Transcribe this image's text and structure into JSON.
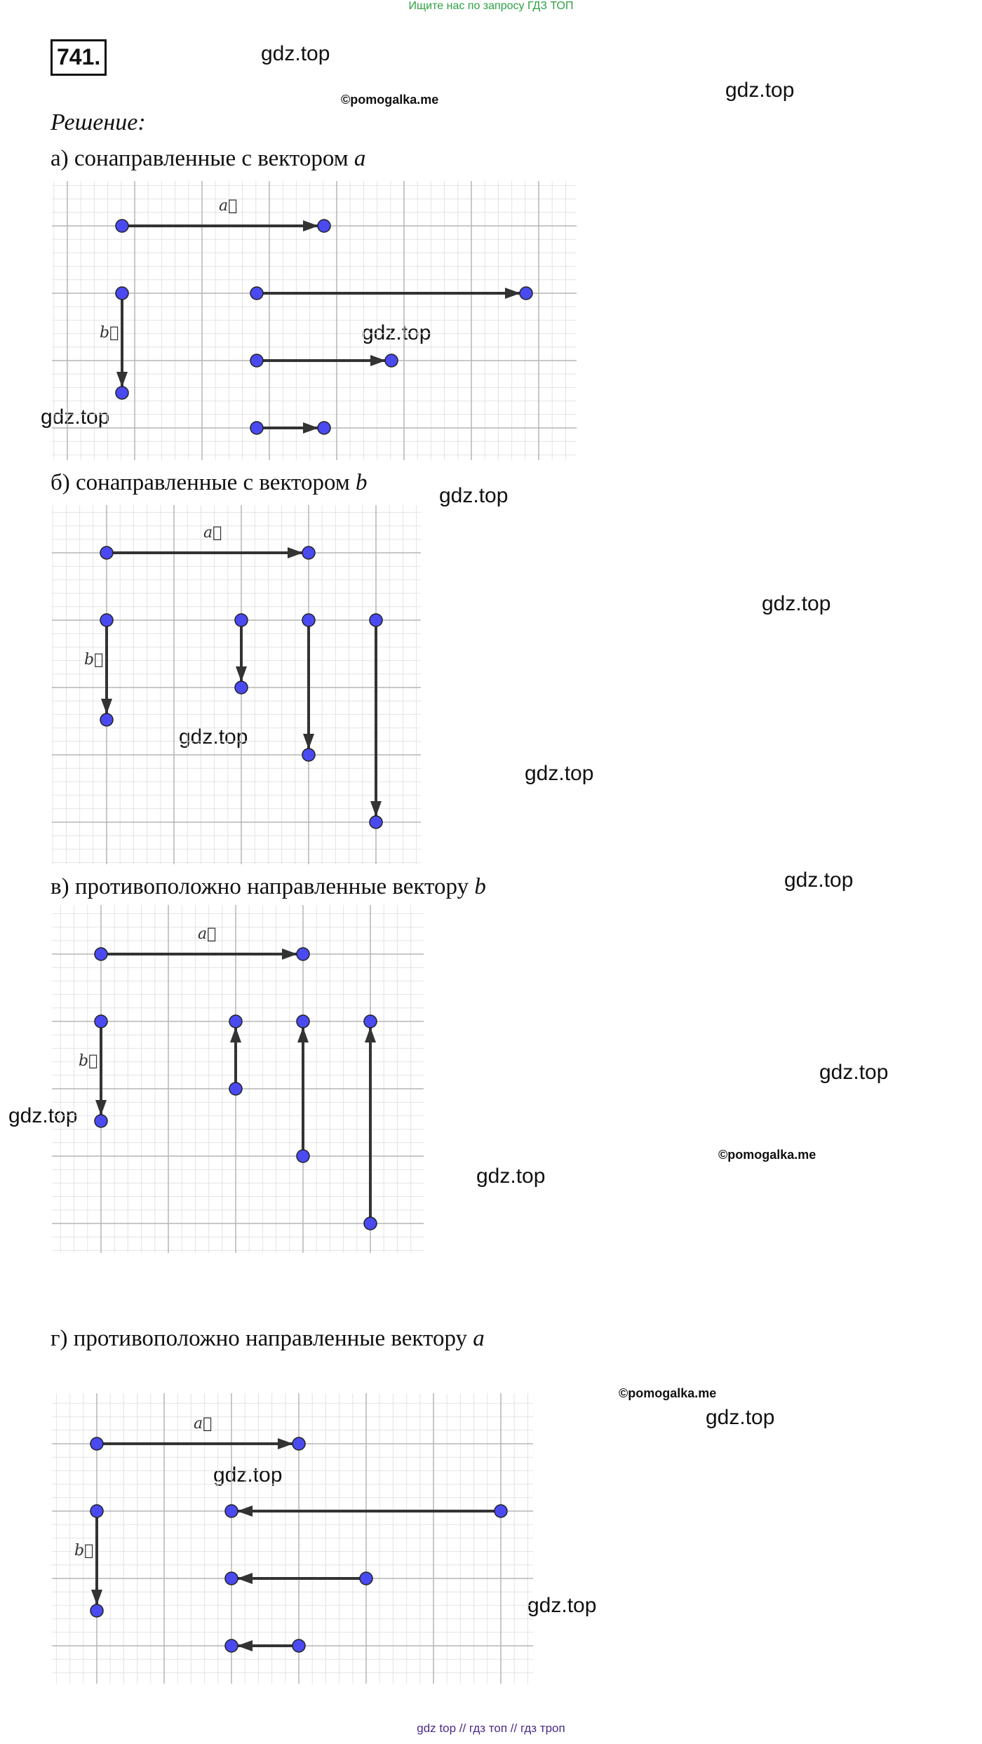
{
  "top_note": "Ищите нас по запросу ГДЗ ТОП",
  "problem_number": "741.",
  "heading": "Решение:",
  "vec_a": "a⃗",
  "vec_b": "b⃗",
  "watermarks": {
    "gdz": "gdz.top",
    "pomogalka": "©pomogalka.me"
  },
  "sections": [
    {
      "caption": "а) сонаправленные с вектором"
    },
    {
      "caption": "б) сонаправленные с вектором"
    },
    {
      "caption": "в) противоположно направленные вектору"
    },
    {
      "caption": "г) противоположно направленные вектору"
    }
  ],
  "footer": "gdz top  //  гдз топ  //  гдз троп",
  "colors": {
    "point": "#4a4af0",
    "arrow": "#333333",
    "grid_major": "#b5b5b5",
    "grid_minor": "#e4e4e4"
  }
}
